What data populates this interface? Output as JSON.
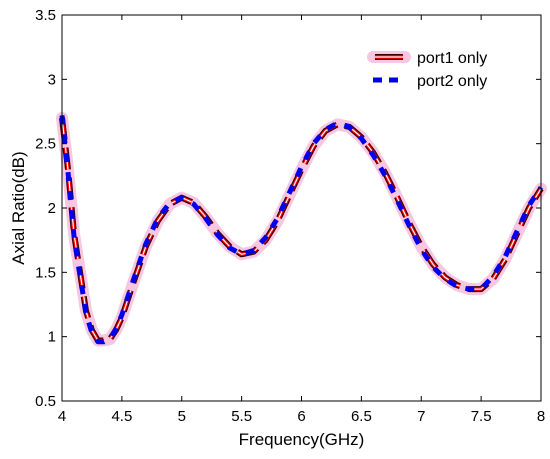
{
  "chart_data": {
    "type": "line",
    "title": "",
    "xlabel": "Frequency(GHz)",
    "ylabel": "Axial Ratio(dB)",
    "xlim": [
      4,
      8
    ],
    "ylim": [
      0.5,
      3.5
    ],
    "xticks": [
      4,
      4.5,
      5,
      5.5,
      6,
      6.5,
      7,
      7.5,
      8
    ],
    "yticks": [
      0.5,
      1,
      1.5,
      2,
      2.5,
      3,
      3.5
    ],
    "xtick_labels": [
      "4",
      "4.5",
      "5",
      "5.5",
      "6",
      "6.5",
      "7",
      "7.5",
      "8"
    ],
    "ytick_labels": [
      "0.5",
      "1",
      "1.5",
      "2",
      "2.5",
      "3",
      "3.5"
    ],
    "grid": false,
    "legend_position": "top-right",
    "x": [
      4.0,
      4.05,
      4.1,
      4.15,
      4.2,
      4.25,
      4.3,
      4.35,
      4.4,
      4.45,
      4.5,
      4.6,
      4.7,
      4.8,
      4.9,
      5.0,
      5.1,
      5.2,
      5.3,
      5.4,
      5.5,
      5.6,
      5.7,
      5.8,
      5.9,
      6.0,
      6.1,
      6.2,
      6.3,
      6.4,
      6.5,
      6.6,
      6.7,
      6.8,
      6.9,
      7.0,
      7.1,
      7.2,
      7.3,
      7.4,
      7.5,
      7.6,
      7.7,
      7.8,
      7.9,
      8.0
    ],
    "series": [
      {
        "name": "port1 only",
        "color": "#ff0000",
        "style": "solid thick red with black edge",
        "values": [
          2.7,
          2.3,
          1.8,
          1.5,
          1.2,
          1.05,
          0.97,
          0.97,
          0.98,
          1.05,
          1.15,
          1.43,
          1.7,
          1.9,
          2.03,
          2.08,
          2.04,
          1.93,
          1.8,
          1.7,
          1.64,
          1.66,
          1.75,
          1.9,
          2.1,
          2.3,
          2.48,
          2.6,
          2.65,
          2.63,
          2.55,
          2.43,
          2.27,
          2.08,
          1.88,
          1.7,
          1.56,
          1.46,
          1.4,
          1.37,
          1.37,
          1.45,
          1.6,
          1.8,
          2.0,
          2.15
        ]
      },
      {
        "name": "port2 only",
        "color": "#0000ee",
        "style": "dashed blue",
        "values": [
          2.72,
          2.28,
          1.78,
          1.48,
          1.18,
          1.03,
          0.96,
          0.96,
          0.98,
          1.06,
          1.17,
          1.45,
          1.72,
          1.92,
          2.04,
          2.08,
          2.03,
          1.92,
          1.79,
          1.69,
          1.64,
          1.67,
          1.77,
          1.92,
          2.12,
          2.32,
          2.5,
          2.61,
          2.66,
          2.63,
          2.54,
          2.41,
          2.25,
          2.06,
          1.86,
          1.68,
          1.54,
          1.45,
          1.39,
          1.37,
          1.37,
          1.47,
          1.62,
          1.82,
          2.02,
          2.16
        ]
      }
    ]
  }
}
